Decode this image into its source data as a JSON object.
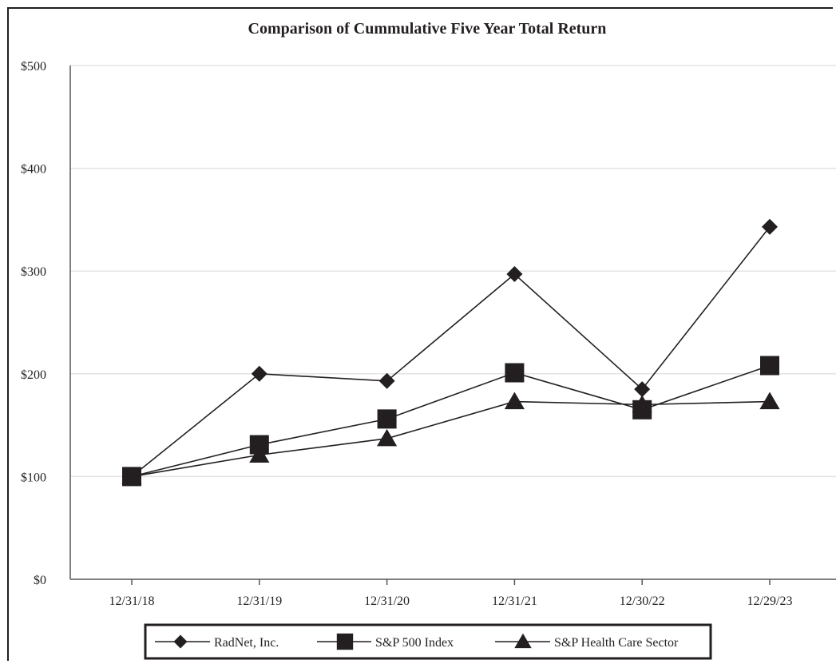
{
  "chart_data": {
    "type": "line",
    "title": "Comparison of Cummulative Five Year Total Return",
    "categories": [
      "12/31/18",
      "12/31/19",
      "12/31/20",
      "12/31/21",
      "12/30/22",
      "12/29/23"
    ],
    "ylim": [
      0,
      500
    ],
    "yticks": [
      0,
      100,
      200,
      300,
      400,
      500
    ],
    "ytick_labels": [
      "$0",
      "$100",
      "$200",
      "$300",
      "$400",
      "$500"
    ],
    "grid": true,
    "legend_position": "bottom",
    "series": [
      {
        "name": "RadNet, Inc.",
        "marker": "diamond",
        "values": [
          100,
          200,
          193,
          297,
          185,
          343
        ]
      },
      {
        "name": "S&P 500 Index",
        "marker": "square",
        "values": [
          100,
          131,
          156,
          201,
          165,
          208
        ]
      },
      {
        "name": "S&P Health Care Sector",
        "marker": "triangle",
        "values": [
          100,
          121,
          137,
          173,
          170,
          173
        ]
      }
    ],
    "colors": {
      "line": "#231f20",
      "marker": "#231f20",
      "grid": "#e3e3e3",
      "axis": "#555555"
    }
  }
}
